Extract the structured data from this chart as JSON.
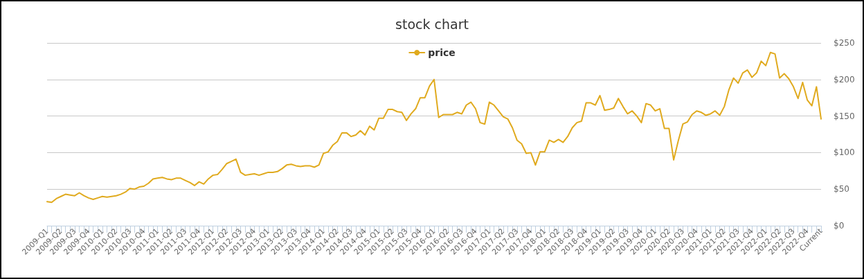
{
  "chart_data": {
    "type": "line",
    "title": "stock chart",
    "categories": [
      "2009-Q1",
      null,
      null,
      "2009-Q2",
      null,
      null,
      "2009-Q3",
      null,
      null,
      "2009-Q4",
      null,
      null,
      "2010-Q1",
      null,
      null,
      "2010-Q2",
      null,
      null,
      "2010-Q3",
      null,
      null,
      "2010-Q4",
      null,
      null,
      "2011-Q1",
      null,
      null,
      "2011-Q2",
      null,
      null,
      "2011-Q3",
      null,
      null,
      "2011-Q4",
      null,
      null,
      "2012-Q1",
      null,
      null,
      "2012-Q2",
      null,
      null,
      "2012-Q3",
      null,
      null,
      "2012-Q4",
      null,
      null,
      "2013-Q1",
      null,
      null,
      "2013-Q2",
      null,
      null,
      "2013-Q3",
      null,
      null,
      "2013-Q4",
      null,
      null,
      "2014-Q1",
      null,
      null,
      "2014-Q2",
      null,
      null,
      "2014-Q3",
      null,
      null,
      "2014-Q4",
      null,
      null,
      "2015-Q1",
      null,
      null,
      "2015-Q2",
      null,
      null,
      "2015-Q3",
      null,
      null,
      "2015-Q4",
      null,
      null,
      "2016-Q1",
      null,
      null,
      "2016-Q2",
      null,
      null,
      "2016-Q3",
      null,
      null,
      "2016-Q4",
      null,
      null,
      "2017-Q1",
      null,
      null,
      "2017-Q2",
      null,
      null,
      "2017-Q3",
      null,
      null,
      "2017-Q4",
      null,
      null,
      "2018-Q1",
      null,
      null,
      "2018-Q2",
      null,
      null,
      "2018-Q3",
      null,
      null,
      "2018-Q4",
      null,
      null,
      "2019-Q1",
      null,
      null,
      "2019-Q2",
      null,
      null,
      "2019-Q3",
      null,
      null,
      "2019-Q4",
      null,
      null,
      "2020-Q1",
      null,
      null,
      "2020-Q2",
      null,
      null,
      "2020-Q3",
      null,
      null,
      "2020-Q4",
      null,
      null,
      "2021-Q1",
      null,
      null,
      "2021-Q2",
      null,
      null,
      "2021-Q3",
      null,
      null,
      "2021-Q4",
      null,
      null,
      "2022-Q1",
      null,
      null,
      "2022-Q2",
      null,
      null,
      "2022-Q3",
      null,
      null,
      "2022-Q4",
      null,
      null,
      "Current"
    ],
    "series": [
      {
        "name": "price",
        "color": "#e0aa1e",
        "values": [
          33,
          32,
          37,
          40,
          43,
          42,
          41,
          45,
          41,
          38,
          36,
          38,
          40,
          39,
          40,
          41,
          43,
          46,
          51,
          50,
          53,
          54,
          58,
          64,
          65,
          66,
          64,
          63,
          65,
          65,
          62,
          59,
          55,
          60,
          57,
          64,
          69,
          70,
          77,
          85,
          88,
          91,
          73,
          69,
          70,
          71,
          69,
          71,
          73,
          73,
          74,
          78,
          83,
          84,
          82,
          81,
          82,
          82,
          80,
          83,
          99,
          101,
          110,
          115,
          127,
          127,
          122,
          124,
          130,
          124,
          136,
          131,
          147,
          147,
          159,
          159,
          156,
          155,
          144,
          153,
          160,
          175,
          175,
          191,
          200,
          148,
          152,
          152,
          152,
          155,
          153,
          165,
          169,
          160,
          141,
          139,
          169,
          165,
          157,
          149,
          146,
          134,
          117,
          112,
          99,
          100,
          83,
          101,
          101,
          117,
          114,
          118,
          114,
          122,
          134,
          141,
          143,
          168,
          168,
          165,
          178,
          158,
          159,
          161,
          174,
          163,
          153,
          157,
          150,
          141,
          167,
          165,
          157,
          160,
          133,
          133,
          90,
          116,
          139,
          142,
          152,
          157,
          155,
          151,
          153,
          157,
          151,
          163,
          186,
          202,
          195,
          209,
          213,
          203,
          209,
          225,
          219,
          237,
          235,
          202,
          208,
          201,
          190,
          174,
          196,
          172,
          164,
          190,
          146
        ]
      }
    ],
    "ylim": [
      0,
      250
    ],
    "yticks": [
      {
        "value": 0,
        "label": "$0"
      },
      {
        "value": 50,
        "label": "$50"
      },
      {
        "value": 100,
        "label": "$100"
      },
      {
        "value": 150,
        "label": "$150"
      },
      {
        "value": 200,
        "label": "$200"
      },
      {
        "value": 250,
        "label": "$250"
      }
    ],
    "grid": "y",
    "legend": "top"
  }
}
